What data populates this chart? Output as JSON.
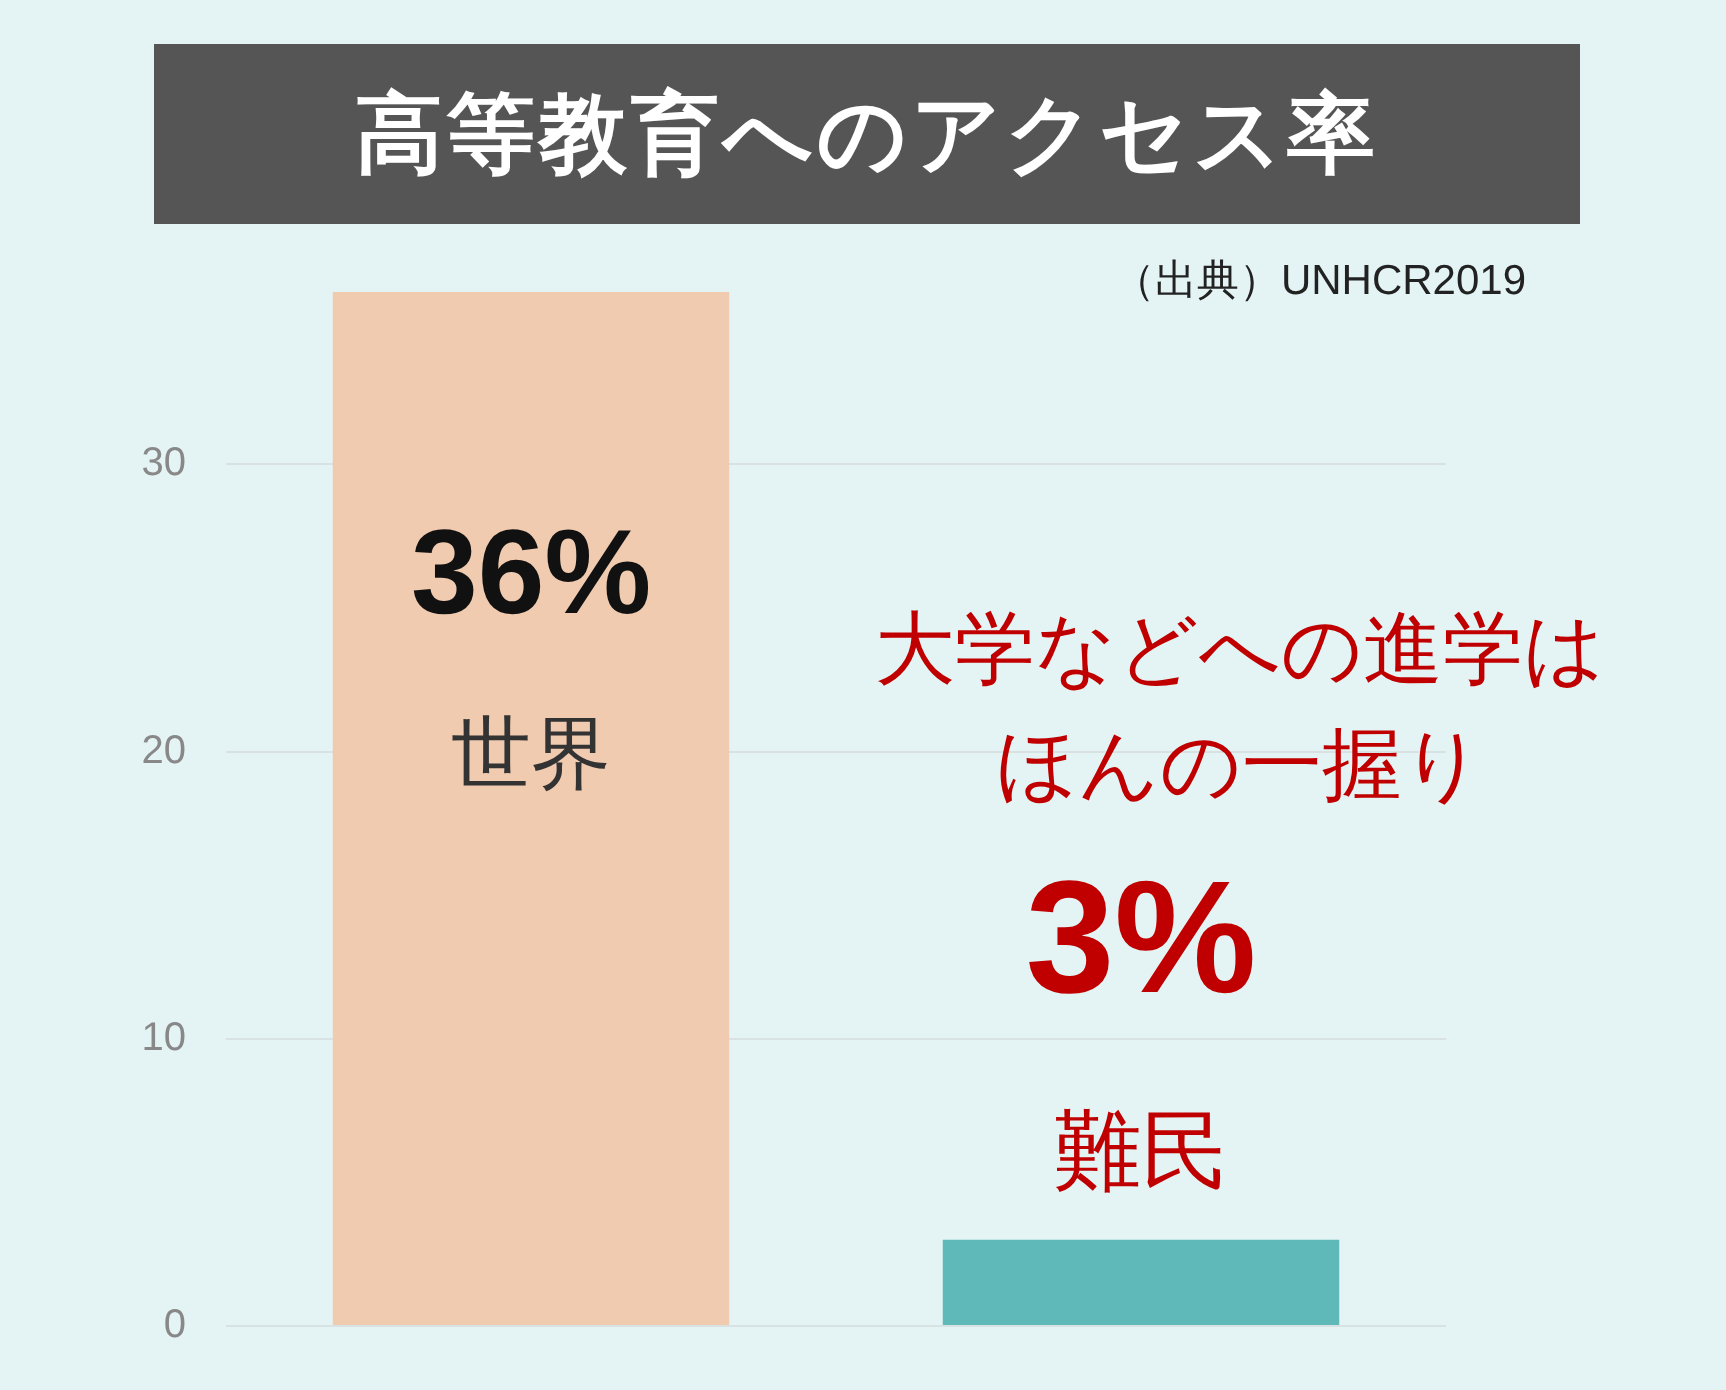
{
  "chart_data": {
    "type": "bar",
    "title": "高等教育へのアクセス率",
    "categories": [
      "世界",
      "難民"
    ],
    "values": [
      36,
      3
    ],
    "colors": [
      "#f0cbb0",
      "#5fb9b9"
    ],
    "value_labels": [
      "36%",
      "3%"
    ],
    "ylim": [
      0,
      36
    ],
    "yticks": [
      0,
      10,
      20,
      30
    ],
    "grid": "y",
    "legend": false,
    "tick_labels": "y",
    "annotations": [
      "（出典）UNHCR2019",
      "大学などへの進学は",
      "ほんの一握り"
    ]
  }
}
